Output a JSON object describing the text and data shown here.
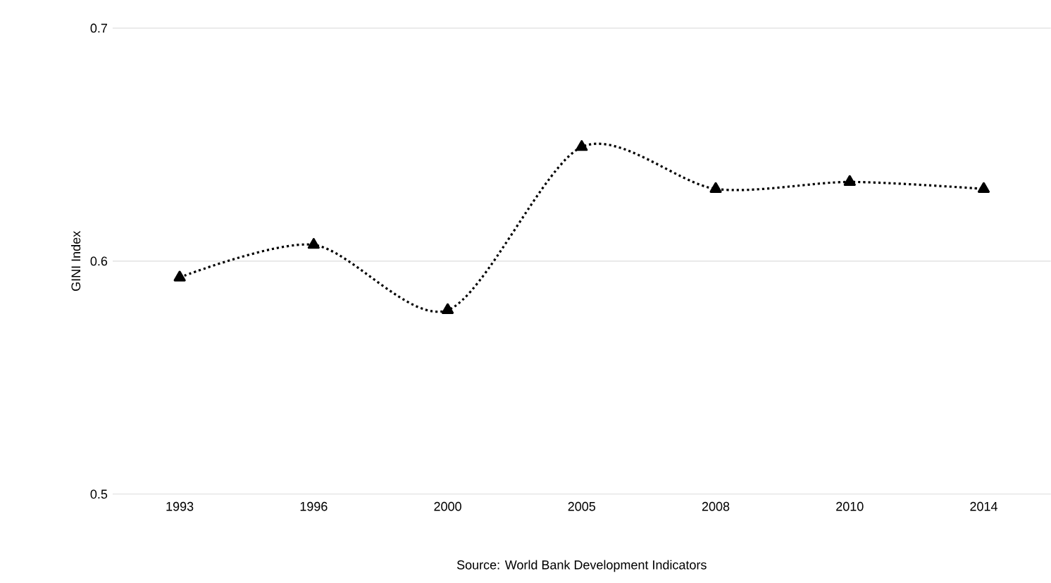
{
  "chart_data": {
    "type": "line",
    "ylabel": "GINI Index",
    "categories": [
      "1993",
      "1996",
      "2000",
      "2005",
      "2008",
      "2010",
      "2014"
    ],
    "values": [
      0.593,
      0.607,
      0.579,
      0.649,
      0.631,
      0.634,
      0.631
    ],
    "color": "#000000",
    "ylim": [
      0.5,
      0.7
    ],
    "yticks": [
      0.5,
      0.6,
      0.7
    ],
    "grid": "y",
    "marker": "triangle",
    "line_style": "dotted",
    "annotations": [
      "Source: World Bank Development Indicators"
    ]
  }
}
